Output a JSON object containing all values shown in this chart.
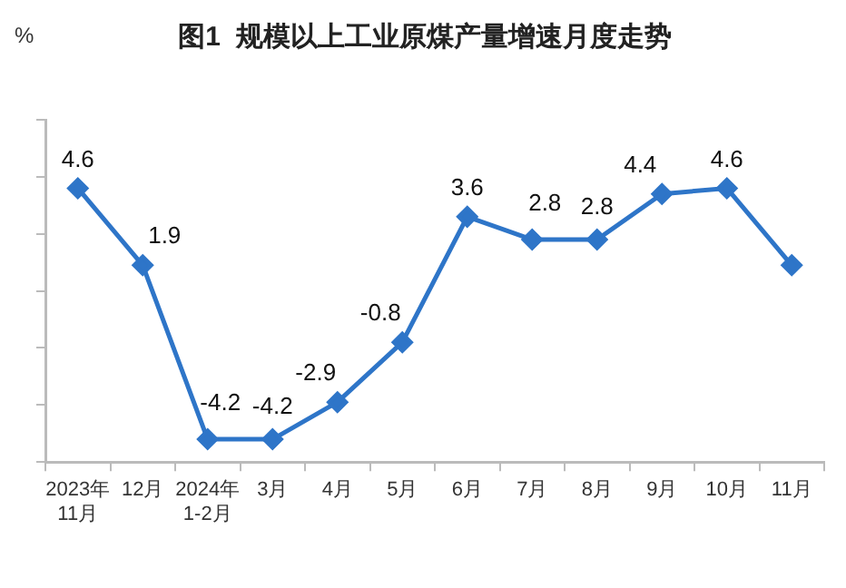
{
  "chart_data": {
    "type": "line",
    "title": "图1  规模以上工业原煤产量增速月度走势",
    "ylabel": "%",
    "categories": [
      "2023年\n11月",
      "12月",
      "2024年\n1-2月",
      "3月",
      "4月",
      "5月",
      "6月",
      "7月",
      "8月",
      "9月",
      "10月",
      "11月"
    ],
    "series": [
      {
        "color": "#2e75c8",
        "values": [
          4.6,
          1.9,
          -4.2,
          -4.2,
          -2.9,
          -0.8,
          3.6,
          2.8,
          2.8,
          4.4,
          4.6,
          1.9
        ],
        "value_labels": [
          "4.6",
          "1.9",
          "-4.2",
          "-4.2",
          "-2.9",
          "-0.8",
          "3.6",
          "2.8",
          "2.8",
          "4.4",
          "4.6",
          null
        ]
      }
    ],
    "ylim": [
      -5,
      7
    ],
    "yticks": [
      {
        "value": -5,
        "label": null
      },
      {
        "value": -3,
        "label": null
      },
      {
        "value": -1,
        "label": null
      },
      {
        "value": 1,
        "label": null
      },
      {
        "value": 3,
        "label": null
      },
      {
        "value": 5,
        "label": null
      },
      {
        "value": 7,
        "label": null
      }
    ],
    "tick_labels": "x",
    "grid": false,
    "legend": false,
    "marker": "diamond",
    "line_style": "solid"
  }
}
